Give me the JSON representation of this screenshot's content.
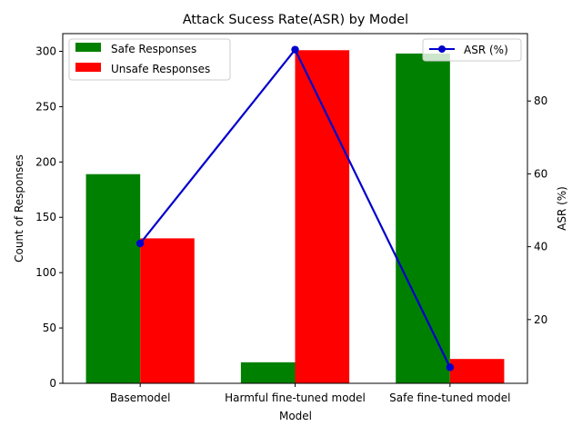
{
  "chart_data": {
    "type": "bar",
    "title": "Attack Sucess Rate(ASR) by Model",
    "xlabel": "Model",
    "ylabel": "Count of Responses",
    "y2label": "ASR (%)",
    "categories": [
      "Basemodel",
      "Harmful fine-tuned model",
      "Safe fine-tuned model"
    ],
    "series": [
      {
        "name": "Safe Responses",
        "values": [
          189,
          19,
          298
        ],
        "color": "#008000"
      },
      {
        "name": "Unsafe Responses",
        "values": [
          131,
          301,
          22
        ],
        "color": "#ff0000"
      }
    ],
    "line_series": {
      "name": "ASR (%)",
      "values": [
        40.9,
        94.1,
        6.9
      ],
      "color": "#0000cc",
      "marker": "circle"
    },
    "ylim": [
      0,
      316
    ],
    "y2lim": [
      2.5,
      98.5
    ],
    "yticks": [
      0,
      50,
      100,
      150,
      200,
      250,
      300
    ],
    "y2ticks": [
      20,
      40,
      60,
      80
    ],
    "legend_left": "top-left",
    "legend_right": "top-right",
    "grid": false
  }
}
